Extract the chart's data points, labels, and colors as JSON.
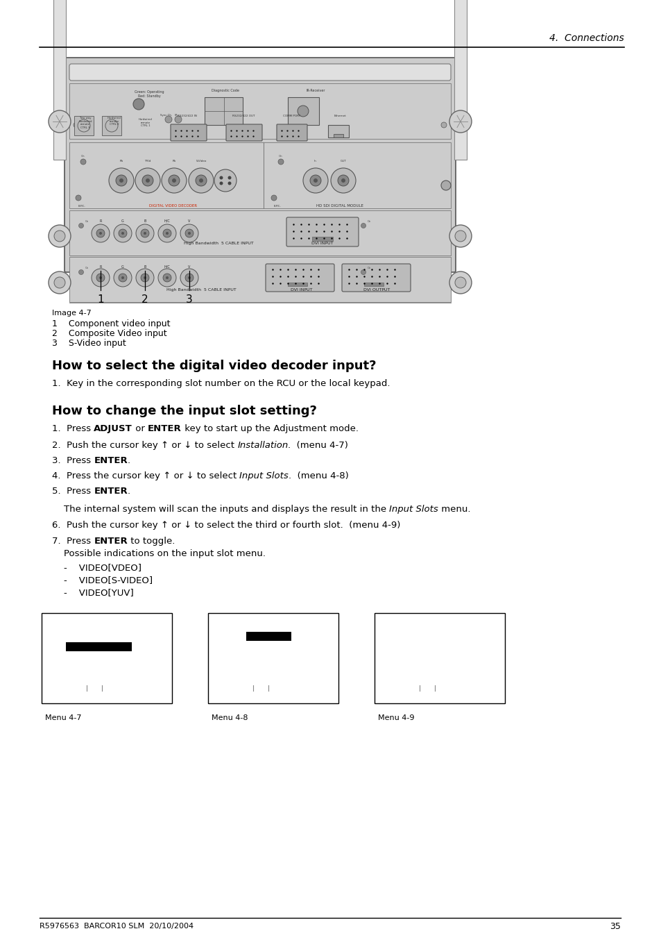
{
  "header_text": "4.  Connections",
  "footer_text": "R5976563  BARCOR10 SLM  20/10/2004",
  "footer_page": "35",
  "image_label": "Image 4-7",
  "image_caption": [
    "1    Component video input",
    "2    Composite Video input",
    "3    S-Video input"
  ],
  "section1_title": "How to select the digital video decoder input?",
  "section1_item": "1.  Key in the corresponding slot number on the RCU or the local keypad.",
  "section2_title": "How to change the input slot setting?",
  "menu_labels": [
    "Menu 4-7",
    "Menu 4-8",
    "Menu 4-9"
  ],
  "bg_color": "#ffffff",
  "text_color": "#000000",
  "panel_color": "#d8d8d8",
  "panel_dark": "#b0b0b0"
}
